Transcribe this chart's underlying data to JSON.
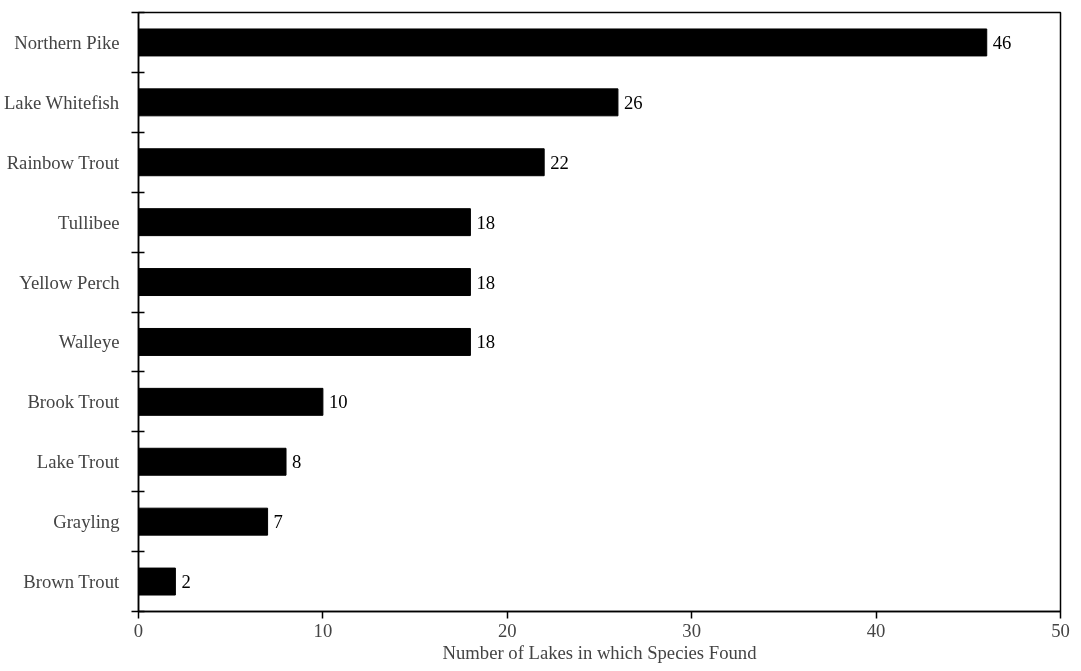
{
  "chart_data": {
    "type": "bar",
    "orientation": "horizontal",
    "xlabel": "Number of Lakes in which Species Found",
    "categories": [
      "Northern Pike",
      "Lake Whitefish",
      "Rainbow Trout",
      "Tullibee",
      "Yellow Perch",
      "Walleye",
      "Brook Trout",
      "Lake Trout",
      "Grayling",
      "Brown Trout"
    ],
    "values": [
      46,
      26,
      22,
      18,
      18,
      18,
      10,
      8,
      7,
      2
    ],
    "color": "#000000",
    "xlim": [
      0,
      50
    ],
    "xticks": [
      0,
      10,
      20,
      30,
      40,
      50
    ],
    "grid": false,
    "data_labels": true
  }
}
